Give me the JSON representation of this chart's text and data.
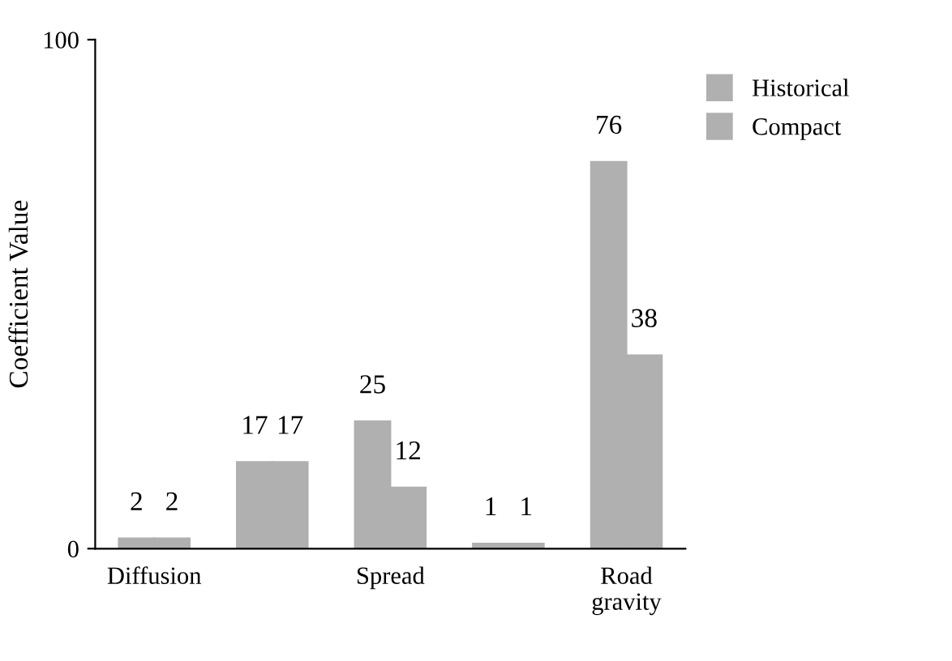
{
  "chart_data": {
    "type": "bar",
    "ylabel": "Coefficient Value",
    "categories": [
      "Diffusion",
      null,
      "Spread",
      null,
      "Road\ngravity"
    ],
    "series": [
      {
        "name": "Historical",
        "color": "#b0b0b0",
        "values": [
          2,
          17,
          25,
          1,
          76
        ]
      },
      {
        "name": "Compact",
        "color": "#b0b0b0",
        "values": [
          2,
          17,
          12,
          1,
          38
        ]
      }
    ],
    "ylim": [
      0,
      100
    ],
    "yticks": [
      0,
      100
    ],
    "data_labels": true,
    "legend": "top right",
    "grid": false
  }
}
